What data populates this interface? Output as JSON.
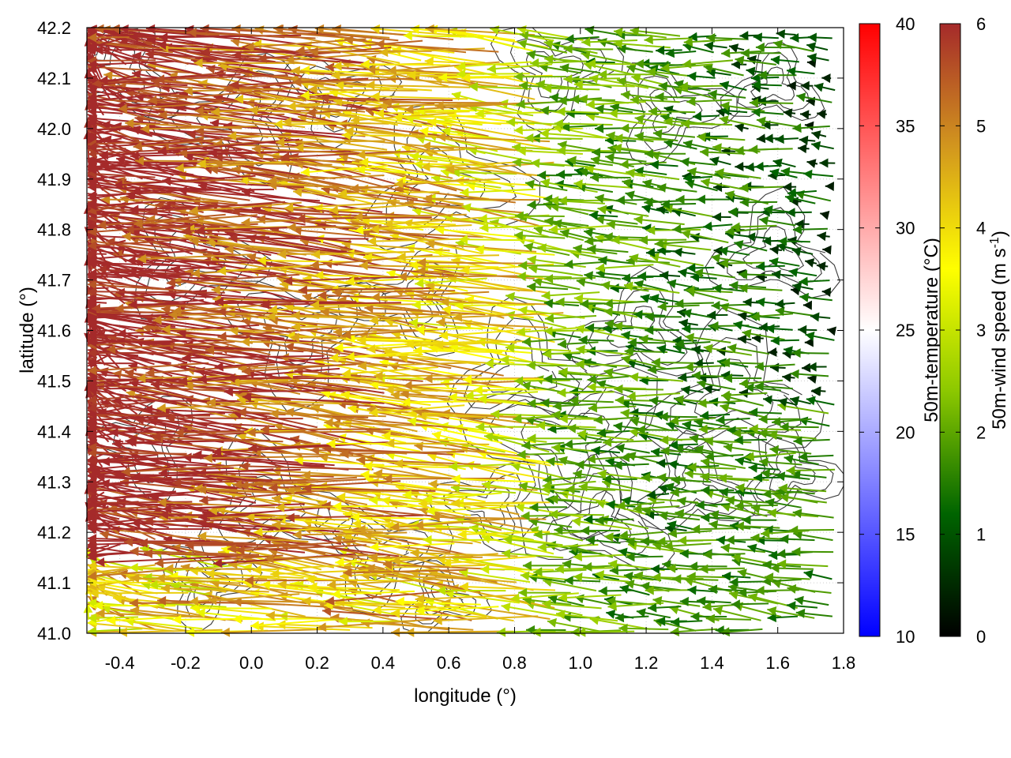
{
  "chart_data": {
    "type": "vector-field",
    "title": "",
    "xlabel": "longitude (°)",
    "ylabel": "latitude (°)",
    "xlim": [
      -0.5,
      1.8
    ],
    "ylim": [
      41.0,
      42.2
    ],
    "xticks": [
      -0.4,
      -0.2,
      0.0,
      0.2,
      0.4,
      0.6,
      0.8,
      1.0,
      1.2,
      1.4,
      1.6,
      1.8
    ],
    "xtick_labels": [
      "-0.4",
      "-0.2",
      "0.0",
      "0.2",
      "0.4",
      "0.6",
      "0.8",
      "1.0",
      "1.2",
      "1.4",
      "1.6",
      "1.8"
    ],
    "yticks": [
      41.0,
      41.1,
      41.2,
      41.3,
      41.4,
      41.5,
      41.6,
      41.7,
      41.8,
      41.9,
      42.0,
      42.1,
      42.2
    ],
    "ytick_labels": [
      "41.0",
      "41.1",
      "41.2",
      "41.3",
      "41.4",
      "41.5",
      "41.6",
      "41.7",
      "41.8",
      "41.9",
      "42.0",
      "42.1",
      "42.2"
    ],
    "grid": true,
    "colorbars": [
      {
        "name": "temperature",
        "label": "50m-temperature (°C)",
        "range": [
          10,
          40
        ],
        "ticks": [
          10,
          15,
          20,
          25,
          30,
          35,
          40
        ],
        "tick_labels": [
          "10",
          "15",
          "20",
          "25",
          "30",
          "35",
          "40"
        ],
        "colors": [
          "#0000ff",
          "#ffffff",
          "#ff0000"
        ]
      },
      {
        "name": "wind-speed",
        "label": "50m-wind speed (m s",
        "label_sup": "-1",
        "label_end": ")",
        "range": [
          0,
          6
        ],
        "ticks": [
          0,
          1,
          2,
          3,
          4,
          5,
          6
        ],
        "tick_labels": [
          "0",
          "1",
          "2",
          "3",
          "4",
          "5",
          "6"
        ],
        "colors": [
          "#000000",
          "#006400",
          "#8cc800",
          "#ffff00",
          "#d2961e",
          "#a52a2a"
        ]
      }
    ],
    "wind_field": {
      "description": "Wind vectors from the east, strongest (about 6 m/s) over the western part of the domain, weakening to 1-2 m/s east of 1.2 deg longitude",
      "speed_max": 6,
      "speed_min": 0.3,
      "direction_deg_from_north": 275,
      "transition_lon": 0.95,
      "southern_weak_lat": 41.15
    }
  }
}
